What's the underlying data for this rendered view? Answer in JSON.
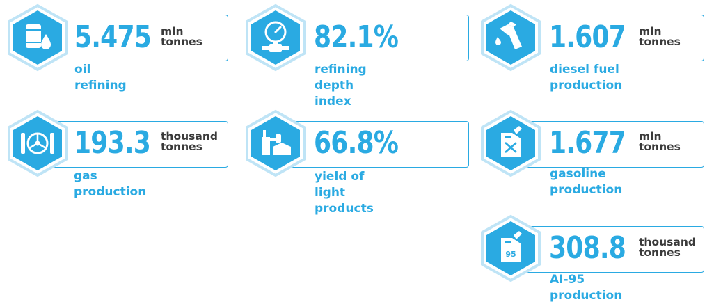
{
  "colors": {
    "accent": "#2aaae2",
    "hex_border": "#bfe4f6",
    "unit_text": "#3a3a3a"
  },
  "stats": [
    {
      "id": "oil",
      "icon": "oil-barrel-icon",
      "value": "5.475",
      "unit": "mln\ntonnes",
      "label": "oil refining"
    },
    {
      "id": "depth",
      "icon": "pressure-gauge-icon",
      "value": "82.1%",
      "unit": "",
      "label": "refining depth\nindex"
    },
    {
      "id": "diesel",
      "icon": "fuel-nozzle-icon",
      "value": "1.607",
      "unit": "mln\ntonnes",
      "label": "diesel fuel\nproduction"
    },
    {
      "id": "gas",
      "icon": "valve-wheel-icon",
      "value": "193.3",
      "unit": "thousand\ntonnes",
      "label": "gas production"
    },
    {
      "id": "yield",
      "icon": "refinery-tanks-icon",
      "value": "66.8%",
      "unit": "",
      "label": "yield of light\nproducts"
    },
    {
      "id": "gasoline",
      "icon": "jerrycan-icon",
      "value": "1.677",
      "unit": "mln\ntonnes",
      "label": "gasoline\nproduction"
    },
    {
      "id": "ai95",
      "icon": "jerrycan-95-icon",
      "value": "308.8",
      "unit": "thousand\ntonnes",
      "label": "AI-95 production",
      "icon_text": "95"
    }
  ]
}
